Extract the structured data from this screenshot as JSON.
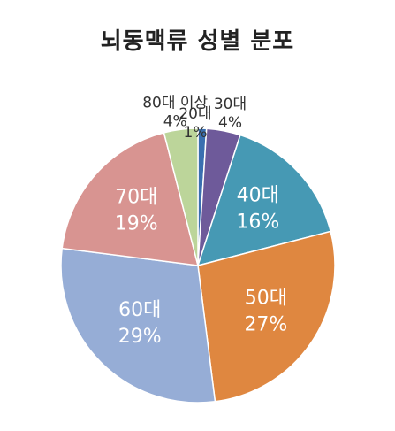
{
  "chart_data": {
    "type": "pie",
    "title": "뇌동맥류 성별 분포",
    "slices": [
      {
        "name": "20대",
        "value": 1,
        "label": "1%",
        "color": "#3a6fb0"
      },
      {
        "name": "30대",
        "value": 4,
        "label": "4%",
        "color": "#6e5a9a"
      },
      {
        "name": "40대",
        "value": 16,
        "label": "16%",
        "color": "#4699b4"
      },
      {
        "name": "50대",
        "value": 27,
        "label": "27%",
        "color": "#df8740"
      },
      {
        "name": "60대",
        "value": 29,
        "label": "29%",
        "color": "#96add6"
      },
      {
        "name": "70대",
        "value": 19,
        "label": "19%",
        "color": "#d89491"
      },
      {
        "name": "80대 이상",
        "value": 4,
        "label": "4%",
        "color": "#bcd59a"
      }
    ]
  }
}
